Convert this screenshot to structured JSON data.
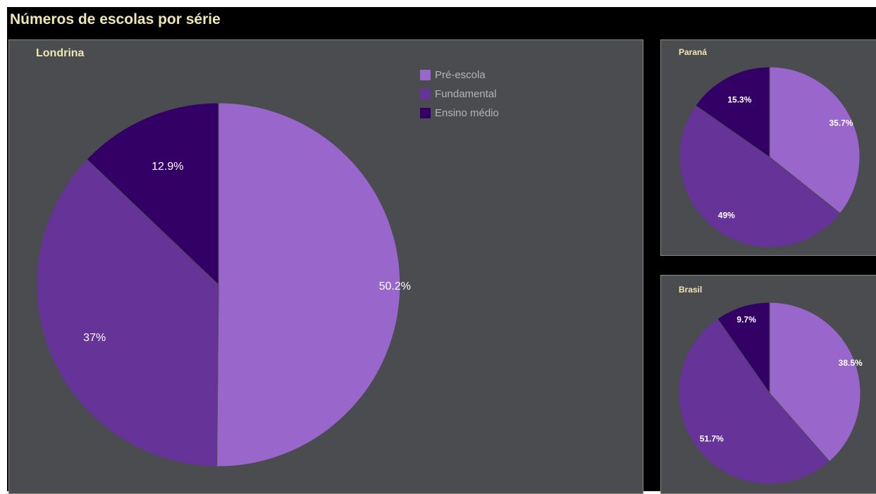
{
  "title": "Números de escolas por série",
  "legend": [
    {
      "label": "Pré-escola",
      "color": "#9966cc"
    },
    {
      "label": "Fundamental",
      "color": "#663399"
    },
    {
      "label": "Ensino médio",
      "color": "#330066"
    }
  ],
  "chart_data": [
    {
      "type": "pie",
      "title": "Londrina",
      "categories": [
        "Pré-escola",
        "Fundamental",
        "Ensino médio"
      ],
      "values": [
        50.2,
        37,
        12.9
      ],
      "labels": [
        "50.2%",
        "37%",
        "12.9%"
      ],
      "colors": [
        "#9966cc",
        "#663399",
        "#330066"
      ],
      "legend_position": "top-right"
    },
    {
      "type": "pie",
      "title": "Paraná",
      "categories": [
        "Pré-escola",
        "Fundamental",
        "Ensino médio"
      ],
      "values": [
        35.7,
        49,
        15.3
      ],
      "labels": [
        "35.7%",
        "49%",
        "15.3%"
      ],
      "colors": [
        "#9966cc",
        "#663399",
        "#330066"
      ]
    },
    {
      "type": "pie",
      "title": "Brasil",
      "categories": [
        "Pré-escola",
        "Fundamental",
        "Ensino médio"
      ],
      "values": [
        38.5,
        51.7,
        9.7
      ],
      "labels": [
        "38.5%",
        "51.7%",
        "9.7%"
      ],
      "colors": [
        "#9966cc",
        "#663399",
        "#330066"
      ]
    }
  ]
}
